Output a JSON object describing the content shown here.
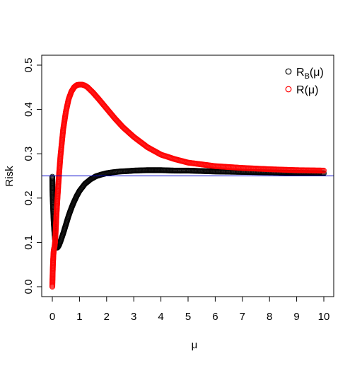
{
  "chart_data": {
    "type": "scatter",
    "title": "",
    "xlabel": "μ",
    "ylabel": "Risk",
    "xlim": [
      0,
      10
    ],
    "ylim": [
      0,
      0.5
    ],
    "x_ticks": [
      0,
      1,
      2,
      3,
      4,
      5,
      6,
      7,
      8,
      9,
      10
    ],
    "x_tick_labels": [
      "0",
      "1",
      "2",
      "3",
      "4",
      "5",
      "6",
      "7",
      "8",
      "9",
      "10"
    ],
    "y_ticks": [
      0.0,
      0.1,
      0.2,
      0.3,
      0.4,
      0.5
    ],
    "y_tick_labels": [
      "0.0",
      "0.1",
      "0.2",
      "0.3",
      "0.4",
      "0.5"
    ],
    "grid": false,
    "legend_position": "top-right",
    "hline": {
      "y": 0.25,
      "color": "#0000cc"
    },
    "series": [
      {
        "name_main": "R",
        "name_sub": "B",
        "name_suffix": "(μ)",
        "color": "#000000",
        "marker": "open-circle",
        "x": [
          0,
          0.005,
          0.01,
          0.02,
          0.03,
          0.04,
          0.05,
          0.06,
          0.08,
          0.1,
          0.12,
          0.15,
          0.18,
          0.2,
          0.25,
          0.3,
          0.4,
          0.5,
          0.6,
          0.7,
          0.8,
          0.9,
          1.0,
          1.2,
          1.4,
          1.6,
          1.8,
          2.0,
          2.2,
          2.5,
          2.8,
          3.0,
          3.5,
          4.0,
          4.5,
          5.0,
          5.5,
          6.0,
          7.0,
          8.0,
          9.0,
          10.0
        ],
        "y": [
          0.248,
          0.22,
          0.205,
          0.19,
          0.175,
          0.16,
          0.148,
          0.138,
          0.12,
          0.106,
          0.097,
          0.09,
          0.088,
          0.089,
          0.094,
          0.102,
          0.12,
          0.14,
          0.16,
          0.177,
          0.192,
          0.205,
          0.216,
          0.232,
          0.242,
          0.249,
          0.253,
          0.256,
          0.258,
          0.26,
          0.261,
          0.262,
          0.263,
          0.263,
          0.262,
          0.262,
          0.261,
          0.26,
          0.259,
          0.258,
          0.257,
          0.256
        ]
      },
      {
        "name_main": "R",
        "name_sub": "",
        "name_suffix": "(μ)",
        "color": "#ff0000",
        "marker": "open-circle",
        "x": [
          0,
          0.01,
          0.02,
          0.03,
          0.04,
          0.05,
          0.06,
          0.08,
          0.1,
          0.12,
          0.15,
          0.2,
          0.25,
          0.3,
          0.4,
          0.5,
          0.6,
          0.7,
          0.8,
          0.9,
          1.0,
          1.1,
          1.2,
          1.3,
          1.5,
          1.7,
          2.0,
          2.3,
          2.6,
          3.0,
          3.5,
          4.0,
          4.5,
          5.0,
          5.5,
          6.0,
          7.0,
          8.0,
          9.0,
          10.0
        ],
        "y": [
          0.0,
          0.025,
          0.045,
          0.06,
          0.072,
          0.08,
          0.085,
          0.09,
          0.1,
          0.12,
          0.16,
          0.21,
          0.255,
          0.295,
          0.355,
          0.395,
          0.423,
          0.44,
          0.45,
          0.455,
          0.456,
          0.456,
          0.454,
          0.45,
          0.438,
          0.424,
          0.402,
          0.38,
          0.36,
          0.338,
          0.315,
          0.298,
          0.288,
          0.28,
          0.276,
          0.272,
          0.268,
          0.265,
          0.263,
          0.262
        ]
      }
    ]
  }
}
